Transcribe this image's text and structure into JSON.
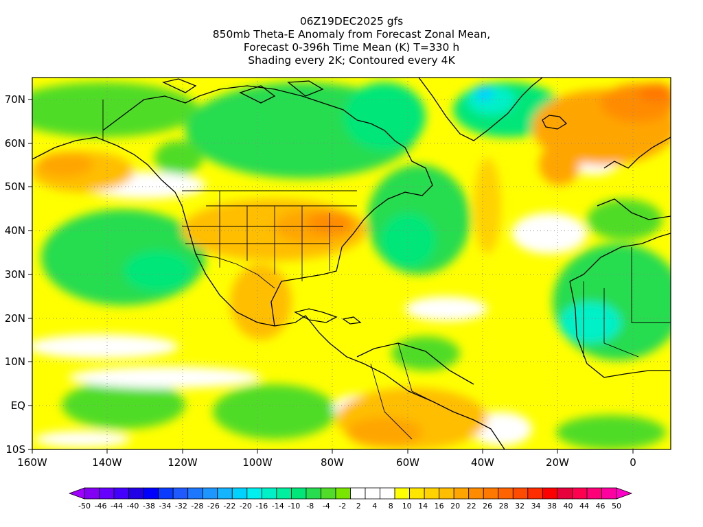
{
  "title": {
    "line1": "06Z19DEC2025 gfs",
    "line2": "850mb Theta-E Anomaly from Forecast Zonal Mean,",
    "line3": "Forecast 0-396h Time Mean (K) T=330 h",
    "line4": "Shading every 2K; Contoured every 4K"
  },
  "map": {
    "lon_range": [
      -160,
      10
    ],
    "lat_range": [
      -10,
      75
    ],
    "lat_labels": [
      "70N",
      "60N",
      "50N",
      "40N",
      "30N",
      "20N",
      "10N",
      "EQ",
      "10S"
    ],
    "lon_labels": [
      "160W",
      "140W",
      "120W",
      "100W",
      "80W",
      "60W",
      "40W",
      "20W",
      "0"
    ]
  },
  "colorbar": {
    "labels": [
      "-50",
      "-46",
      "-44",
      "-40",
      "-38",
      "-34",
      "-32",
      "-28",
      "-26",
      "-22",
      "-20",
      "-16",
      "-14",
      "-10",
      "-8",
      "-4",
      "-2",
      "2",
      "4",
      "8",
      "10",
      "14",
      "16",
      "20",
      "22",
      "26",
      "28",
      "32",
      "34",
      "38",
      "40",
      "44",
      "46",
      "50"
    ],
    "colors": [
      "#a000ff",
      "#8400f5",
      "#6600ff",
      "#4400ff",
      "#2200e6",
      "#0000ff",
      "#0a3cff",
      "#1e5aff",
      "#1e78ff",
      "#1e96ff",
      "#14b4ff",
      "#00d2ff",
      "#00f0f0",
      "#00f0c8",
      "#00f0a0",
      "#00e678",
      "#28dc50",
      "#50dc28",
      "#78e600",
      "#ffffff",
      "#ffffff",
      "#ffffff",
      "#ffff00",
      "#ffe600",
      "#ffd200",
      "#ffbe00",
      "#ffa500",
      "#ff8c00",
      "#ff7800",
      "#ff6400",
      "#ff4b00",
      "#ff2d00",
      "#ff0000",
      "#e6003c",
      "#ff0050",
      "#ff0078",
      "#ff00a0",
      "#ff00c8"
    ]
  }
}
